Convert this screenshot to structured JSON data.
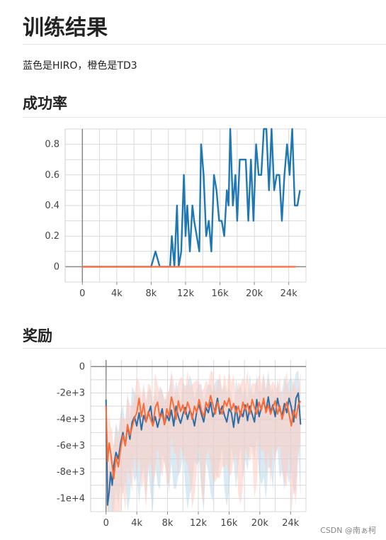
{
  "page": {
    "title": "训练结果",
    "description": "蓝色是HIRO，橙色是TD3",
    "section_success": "成功率",
    "section_reward": "奖励",
    "watermark": "CSDN @南ぁ柯"
  },
  "colors": {
    "blue": "#1f77b4",
    "orange": "#ff7043",
    "grid": "#d9d9d9",
    "axis": "#888888"
  },
  "chart_data": [
    {
      "type": "line",
      "title": "成功率",
      "xlabel": "",
      "ylabel": "",
      "xlim": [
        -2000,
        26000
      ],
      "ylim": [
        -0.1,
        0.9
      ],
      "x_ticks": [
        0,
        4000,
        8000,
        12000,
        16000,
        20000,
        24000
      ],
      "x_tick_labels": [
        "0",
        "4k",
        "8k",
        "12k",
        "16k",
        "20k",
        "24k"
      ],
      "y_ticks": [
        0,
        0.2,
        0.4,
        0.6,
        0.8
      ],
      "y_tick_labels": [
        "0",
        "0.2",
        "0.4",
        "0.6",
        "0.8"
      ],
      "grid": true,
      "series": [
        {
          "color": "#1f77b4",
          "x": [
            0,
            8000,
            8500,
            9000,
            10200,
            10400,
            10700,
            11000,
            11200,
            11500,
            11800,
            12000,
            12200,
            12500,
            12800,
            13000,
            13300,
            13600,
            13800,
            14100,
            14400,
            14700,
            15000,
            15300,
            15600,
            15900,
            16200,
            16500,
            16800,
            17000,
            17200,
            17500,
            17800,
            18000,
            18300,
            18700,
            19000,
            19300,
            19600,
            19900,
            20200,
            20500,
            20800,
            21100,
            21400,
            21700,
            22000,
            22300,
            22600,
            22900,
            23200,
            23500,
            23800,
            24100,
            24400,
            24700,
            25000,
            25300
          ],
          "values": [
            0,
            0,
            0.1,
            0,
            0,
            0.2,
            0,
            0.4,
            0,
            0.1,
            0.6,
            0.2,
            0.4,
            0.1,
            0.4,
            0.3,
            0.2,
            0.1,
            0.8,
            0.6,
            0.2,
            0.3,
            0.1,
            0.6,
            0.5,
            0.3,
            0.3,
            0.2,
            0.5,
            0.4,
            0.9,
            0.4,
            0.6,
            0.3,
            0.7,
            0.7,
            0.7,
            0.3,
            0.7,
            0.3,
            0.8,
            0.6,
            0.6,
            0.9,
            0.9,
            0.5,
            0.9,
            0.5,
            0.6,
            0.6,
            0.3,
            0.6,
            0.8,
            0.6,
            0.9,
            0.4,
            0.4,
            0.5
          ]
        },
        {
          "color": "#ff7043",
          "x": [
            0,
            24800
          ],
          "values": [
            0,
            0
          ]
        }
      ]
    },
    {
      "type": "line",
      "title": "奖励",
      "xlabel": "",
      "ylabel": "",
      "xlim": [
        -2000,
        26000
      ],
      "ylim": [
        -11000,
        500
      ],
      "x_ticks": [
        0,
        4000,
        8000,
        12000,
        16000,
        20000,
        24000
      ],
      "x_tick_labels": [
        "0",
        "4k",
        "8k",
        "12k",
        "16k",
        "20k",
        "24k"
      ],
      "y_ticks": [
        0,
        -2000,
        -4000,
        -6000,
        -8000,
        -10000
      ],
      "y_tick_labels": [
        "0",
        "-2e+3",
        "-4e+3",
        "-6e+3",
        "-8e+3",
        "-1e+4"
      ],
      "grid": true,
      "series": [
        {
          "color": "#2e6da4",
          "x": [
            0,
            200,
            400,
            600,
            800,
            1000,
            1300,
            1600,
            1900,
            2200,
            2500,
            2800,
            3100,
            3400,
            3700,
            4000,
            4300,
            4600,
            4900,
            5200,
            5500,
            5800,
            6100,
            6400,
            6700,
            7000,
            7300,
            7600,
            7900,
            8200,
            8500,
            8800,
            9100,
            9400,
            9700,
            10000,
            10300,
            10600,
            10900,
            11200,
            11500,
            11800,
            12100,
            12400,
            12700,
            13000,
            13300,
            13600,
            13900,
            14200,
            14500,
            14800,
            15100,
            15400,
            15700,
            16000,
            16300,
            16600,
            16900,
            17200,
            17500,
            17800,
            18100,
            18400,
            18700,
            19000,
            19300,
            19600,
            19900,
            20200,
            20500,
            20800,
            21100,
            21400,
            21700,
            22000,
            22300,
            22600,
            22900,
            23200,
            23500,
            23800,
            24100,
            24400,
            24700,
            25000,
            25300
          ],
          "values": [
            -2500,
            -10500,
            -9500,
            -8000,
            -9000,
            -7500,
            -6500,
            -7000,
            -5800,
            -5000,
            -6000,
            -4500,
            -5500,
            -4200,
            -3800,
            -4500,
            -3500,
            -4800,
            -3700,
            -4200,
            -3600,
            -3000,
            -4400,
            -3800,
            -4600,
            -3900,
            -3200,
            -4400,
            -3700,
            -4100,
            -3300,
            -4500,
            -3000,
            -3800,
            -4300,
            -3600,
            -3100,
            -4000,
            -3300,
            -3700,
            -4500,
            -3400,
            -2900,
            -3600,
            -4200,
            -3100,
            -3500,
            -2700,
            -3800,
            -3300,
            -2400,
            -3600,
            -3000,
            -3700,
            -4200,
            -3200,
            -3500,
            -4600,
            -3000,
            -4300,
            -3400,
            -3800,
            -2900,
            -4100,
            -3000,
            -3600,
            -4200,
            -2500,
            -3800,
            -3100,
            -2600,
            -3400,
            -2300,
            -3500,
            -2900,
            -3800,
            -2400,
            -3300,
            -3700,
            -2800,
            -3500,
            -2400,
            -3100,
            -4200,
            -2400,
            -2000,
            -4400
          ]
        },
        {
          "color": "#ff6b35",
          "x": [
            0,
            200,
            400,
            600,
            800,
            1000,
            1300,
            1600,
            1900,
            2200,
            2500,
            2800,
            3100,
            3400,
            3700,
            4000,
            4300,
            4600,
            4900,
            5200,
            5500,
            5800,
            6100,
            6400,
            6700,
            7000,
            7300,
            7600,
            7900,
            8200,
            8500,
            8800,
            9100,
            9400,
            9700,
            10000,
            10300,
            10600,
            10900,
            11200,
            11500,
            11800,
            12100,
            12400,
            12700,
            13000,
            13300,
            13600,
            13900,
            14200,
            14500,
            14800,
            15100,
            15400,
            15700,
            16000,
            16300,
            16600,
            16900,
            17200,
            17500,
            17800,
            18100,
            18400,
            18700,
            19000,
            19300,
            19600,
            19900,
            20200,
            20500,
            20800,
            21100,
            21400,
            21700,
            22000,
            22300,
            22600,
            22900,
            23200,
            23500,
            23800,
            24100,
            24400,
            24700,
            25000,
            25300
          ],
          "values": [
            -3000,
            -7200,
            -5800,
            -6500,
            -7500,
            -8500,
            -6800,
            -7600,
            -6200,
            -5200,
            -6000,
            -4400,
            -5200,
            -4600,
            -3900,
            -3500,
            -2400,
            -3800,
            -2800,
            -4200,
            -3400,
            -4000,
            -4500,
            -3100,
            -2700,
            -3900,
            -3600,
            -4400,
            -3200,
            -3800,
            -2300,
            -3000,
            -4000,
            -2600,
            -3400,
            -2900,
            -3600,
            -2700,
            -3200,
            -4000,
            -3000,
            -3500,
            -2500,
            -3300,
            -3800,
            -2700,
            -3100,
            -2200,
            -2900,
            -3600,
            -2700,
            -3200,
            -3600,
            -2600,
            -3000,
            -2400,
            -3300,
            -2800,
            -3500,
            -3000,
            -3800,
            -2700,
            -3300,
            -2800,
            -3600,
            -2500,
            -3100,
            -3600,
            -2700,
            -3300,
            -2400,
            -3500,
            -2900,
            -3600,
            -3100,
            -2600,
            -3600,
            -3000,
            -4000,
            -3300,
            -2700,
            -3600,
            -4500,
            -3300,
            -3900,
            -2900,
            -2600
          ]
        }
      ],
      "raw_band": [
        {
          "color": "#aed0e8",
          "description_from_pixels": ""
        },
        {
          "color": "#ffcbbd"
        }
      ]
    }
  ]
}
